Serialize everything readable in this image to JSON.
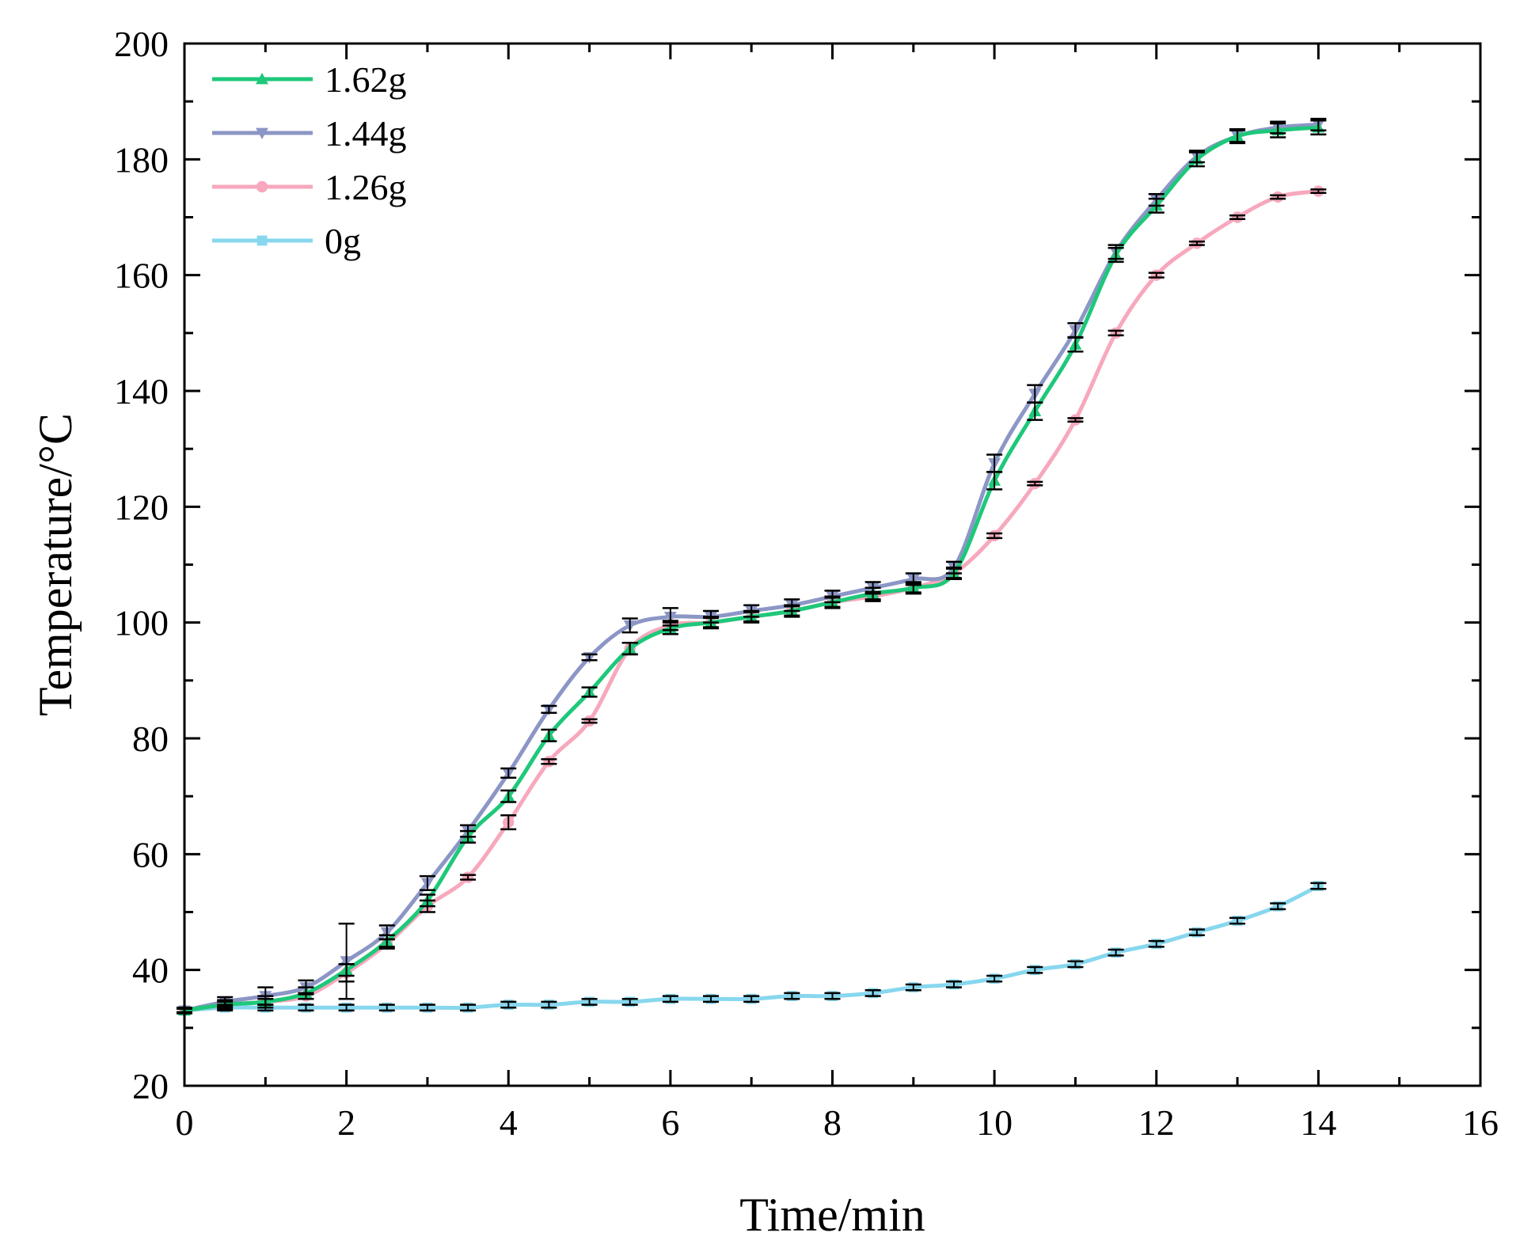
{
  "chart_data": {
    "type": "line",
    "title": "",
    "xlabel": "Time/min",
    "ylabel": "Temperature/°C",
    "xlim": [
      0,
      16
    ],
    "ylim": [
      20,
      200
    ],
    "xticks": [
      0,
      2,
      4,
      6,
      8,
      10,
      12,
      14,
      16
    ],
    "yticks": [
      20,
      40,
      60,
      80,
      100,
      120,
      140,
      160,
      180,
      200
    ],
    "xtick_labels": [
      "0",
      "2",
      "4",
      "6",
      "8",
      "10",
      "12",
      "14",
      "16"
    ],
    "ytick_labels": [
      "20",
      "40",
      "60",
      "80",
      "100",
      "120",
      "140",
      "160",
      "180",
      "200"
    ],
    "grid": false,
    "legend_position": "top-left",
    "x": [
      0,
      0.5,
      1,
      1.5,
      2,
      2.5,
      3,
      3.5,
      4,
      4.5,
      5,
      5.5,
      6,
      6.5,
      7,
      7.5,
      8,
      8.5,
      9,
      9.5,
      10,
      10.5,
      11,
      11.5,
      12,
      12.5,
      13,
      13.5,
      14
    ],
    "series": [
      {
        "name": "1.62g",
        "color": "#1ec87a",
        "marker": "triangle-up",
        "values": [
          33,
          34,
          34.5,
          36,
          40,
          45,
          52,
          63,
          70,
          80.5,
          88,
          95.5,
          99,
          100,
          101,
          102,
          103.5,
          105,
          106,
          108.5,
          124.5,
          136.5,
          148,
          163.5,
          172,
          180,
          184,
          185,
          185.5
        ],
        "errors": [
          0.3,
          0.8,
          1.0,
          1.0,
          1.0,
          1.0,
          1.0,
          1.0,
          1.0,
          1.0,
          0.8,
          1.0,
          1.0,
          1.0,
          1.0,
          1.0,
          1.0,
          1.0,
          1.0,
          1.0,
          1.5,
          1.5,
          1.2,
          1.2,
          1.2,
          1.2,
          1.2,
          1.2,
          1.2
        ]
      },
      {
        "name": "1.44g",
        "color": "#8c96c6",
        "marker": "triangle-down",
        "values": [
          33,
          34.5,
          35.5,
          37,
          41.5,
          46.5,
          55,
          64,
          74,
          85,
          94,
          99.5,
          101,
          101,
          102,
          103,
          104.5,
          106,
          107.5,
          109.5,
          127.5,
          139.5,
          150.5,
          164,
          173,
          180.5,
          184,
          185.5,
          186
        ],
        "errors": [
          0.3,
          0.8,
          1.5,
          1.2,
          6.5,
          1.2,
          1.2,
          1.0,
          0.8,
          0.6,
          0.5,
          1.2,
          1.5,
          1.0,
          1.0,
          1.0,
          1.0,
          1.0,
          1.0,
          1.0,
          1.5,
          1.5,
          1.2,
          1.2,
          1.0,
          1.0,
          1.0,
          1.0,
          1.0
        ]
      },
      {
        "name": "1.26g",
        "color": "#f7a8bd",
        "marker": "circle",
        "values": [
          33,
          34,
          34.5,
          35.5,
          39.5,
          44.5,
          51,
          56,
          65.5,
          76,
          83,
          95.5,
          99.5,
          100,
          101,
          102,
          103.5,
          104.5,
          106,
          108.5,
          115,
          124,
          135,
          150,
          160,
          165.5,
          170,
          173.5,
          174.5
        ],
        "errors": [
          0.3,
          0.5,
          0.5,
          0.5,
          1.5,
          0.8,
          1.0,
          0.4,
          1.2,
          0.4,
          0.3,
          1.0,
          0.8,
          0.8,
          0.8,
          0.8,
          0.8,
          0.8,
          0.8,
          0.8,
          0.4,
          0.3,
          0.3,
          0.4,
          0.4,
          0.3,
          0.3,
          0.3,
          0.3
        ]
      },
      {
        "name": "0g",
        "color": "#87d7ee",
        "marker": "square",
        "values": [
          33,
          33.5,
          33.5,
          33.5,
          33.5,
          33.5,
          33.5,
          33.5,
          34,
          34,
          34.5,
          34.5,
          35,
          35,
          35,
          35.5,
          35.5,
          36,
          37,
          37.5,
          38.5,
          40,
          41,
          43,
          44.5,
          46.5,
          48.5,
          51,
          54.5
        ],
        "errors": [
          0.5,
          0.5,
          0.5,
          0.5,
          0.5,
          0.5,
          0.5,
          0.5,
          0.5,
          0.5,
          0.5,
          0.5,
          0.5,
          0.5,
          0.5,
          0.5,
          0.5,
          0.5,
          0.5,
          0.5,
          0.5,
          0.5,
          0.5,
          0.5,
          0.5,
          0.5,
          0.5,
          0.5,
          0.5
        ]
      }
    ]
  }
}
